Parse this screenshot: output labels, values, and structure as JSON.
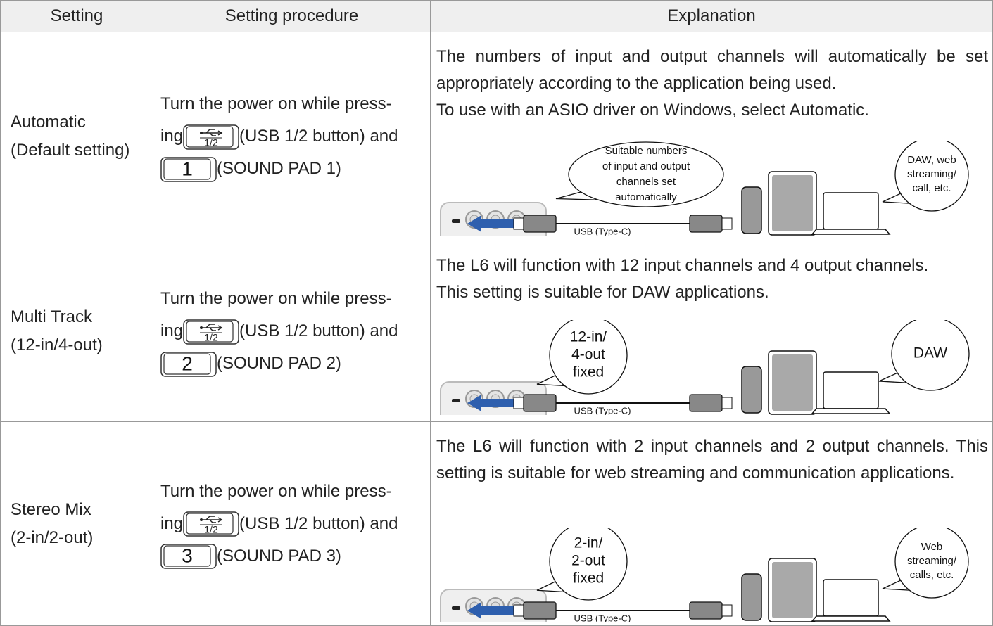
{
  "table": {
    "header": [
      "Setting",
      "Setting procedure",
      "Explanation"
    ],
    "rows": [
      {
        "setting": [
          "Automatic",
          "(Default setting)"
        ],
        "procedure": {
          "lines": [
            "Turn the power on while press-",
            "ing",
            "(USB 1/2 button) and",
            "(SOUND PAD 1)"
          ],
          "button_label": "1/2",
          "pad": "1"
        },
        "explanation": [
          "The numbers of input and output channels will automatically be set appropriately according to the application being used.",
          "To use with an ASIO driver on Windows, select Automatic."
        ],
        "diagram": {
          "device_text": [
            "Suitable numbers",
            "of input and output",
            "channels set",
            "automatically"
          ],
          "cable": "USB (Type-C)",
          "target_text": [
            "DAW, web",
            "streaming/",
            "call, etc."
          ]
        }
      },
      {
        "setting": [
          "Multi Track",
          "(12-in/4-out)"
        ],
        "procedure": {
          "lines": [
            "Turn the power on while press-",
            "ing",
            "(USB 1/2 button) and",
            "(SOUND PAD 2)"
          ],
          "button_label": "1/2",
          "pad": "2"
        },
        "explanation": [
          "The L6 will function with 12 input channels and 4 output channels.",
          "This setting is suitable for DAW applications."
        ],
        "diagram": {
          "device_text": [
            "12-in/",
            "4-out",
            "fixed"
          ],
          "cable": "USB (Type-C)",
          "target_text": [
            "DAW"
          ]
        }
      },
      {
        "setting": [
          "Stereo Mix",
          "(2-in/2-out)"
        ],
        "procedure": {
          "lines": [
            "Turn the power on while press-",
            "ing",
            "(USB 1/2 button) and",
            "(SOUND PAD 3)"
          ],
          "button_label": "1/2",
          "pad": "3"
        },
        "explanation": [
          "The L6 will function with 2 input channels and 2 output channels. This setting is suitable for web streaming and communication applications."
        ],
        "diagram": {
          "device_text": [
            "2-in/",
            "2-out",
            "fixed"
          ],
          "cable": "USB (Type-C)",
          "target_text": [
            "Web",
            "streaming/",
            "calls, etc."
          ]
        }
      }
    ]
  }
}
